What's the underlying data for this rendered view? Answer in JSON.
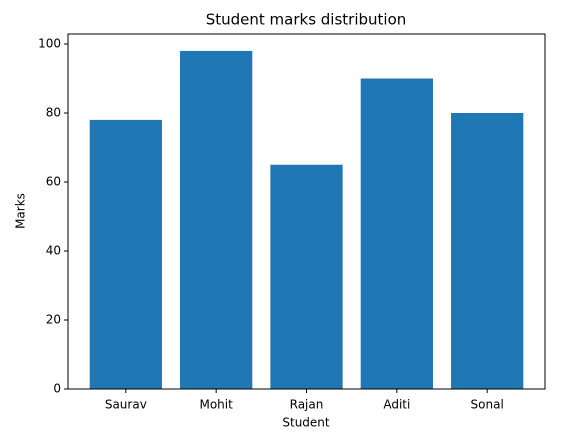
{
  "chart_data": {
    "type": "bar",
    "title": "Student marks distribution",
    "x_label": "Student",
    "y_label": "Marks",
    "categories": [
      "Saurav",
      "Mohit",
      "Rajan",
      "Aditi",
      "Sonal"
    ],
    "values": [
      78,
      98,
      65,
      90,
      80
    ],
    "color": "#1f77b4",
    "ylim": [
      0,
      102.9
    ],
    "yticks": [
      0,
      20,
      40,
      60,
      80,
      100
    ],
    "grid": false
  }
}
